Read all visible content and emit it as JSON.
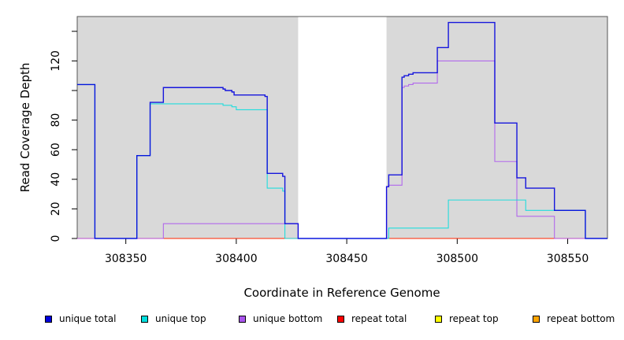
{
  "chart_data": {
    "type": "line",
    "title": "",
    "xlabel": "Coordinate in Reference Genome",
    "ylabel": "Read Coverage Depth",
    "xlim": [
      308328,
      308568
    ],
    "ylim": [
      0,
      150
    ],
    "xticks": [
      308350,
      308400,
      308450,
      308500,
      308550
    ],
    "yticks": [
      0,
      20,
      40,
      60,
      80,
      120
    ],
    "yticks_minor": [
      100,
      140
    ],
    "shaded_regions": [
      [
        308328,
        308428
      ],
      [
        308468,
        308568
      ]
    ],
    "legend_position": "bottom",
    "series": [
      {
        "name": "unique total",
        "color": "#0000dd",
        "x": [
          308328,
          308336,
          308336,
          308355,
          308355,
          308361,
          308361,
          308367,
          308367,
          308394,
          308394,
          308395,
          308395,
          308398,
          308398,
          308399,
          308399,
          308400,
          308400,
          308413,
          308413,
          308414,
          308414,
          308421,
          308421,
          308422,
          308422,
          308428,
          308428,
          308468,
          308468,
          308469,
          308469,
          308475,
          308475,
          308476,
          308476,
          308478,
          308478,
          308480,
          308480,
          308491,
          308491,
          308495,
          308495,
          308496,
          308496,
          308517,
          308517,
          308527,
          308527,
          308531,
          308531,
          308544,
          308544,
          308558,
          308558,
          308568
        ],
        "y": [
          104,
          104,
          0,
          0,
          56,
          56,
          92,
          92,
          102,
          102,
          101,
          101,
          100,
          100,
          99,
          99,
          97,
          97,
          97,
          97,
          96,
          96,
          44,
          44,
          42,
          42,
          10,
          10,
          0,
          0,
          35,
          35,
          43,
          43,
          109,
          109,
          110,
          110,
          111,
          111,
          112,
          112,
          129,
          129,
          129,
          129,
          146,
          146,
          78,
          78,
          41,
          41,
          34,
          34,
          19,
          19,
          0,
          0
        ]
      },
      {
        "name": "unique top",
        "color": "#00dddd",
        "x": [
          308328,
          308336,
          308336,
          308355,
          308355,
          308361,
          308361,
          308394,
          308394,
          308398,
          308398,
          308400,
          308400,
          308413,
          308413,
          308414,
          308414,
          308421,
          308421,
          308422,
          308422,
          308428,
          308428,
          308469,
          308469,
          308496,
          308496,
          308527,
          308527,
          308531,
          308531,
          308544,
          308544,
          308558,
          308558,
          308568
        ],
        "y": [
          104,
          104,
          0,
          0,
          56,
          56,
          91,
          91,
          90,
          90,
          89,
          89,
          87,
          87,
          87,
          87,
          34,
          34,
          32,
          32,
          0,
          0,
          0,
          0,
          7,
          7,
          26,
          26,
          26,
          26,
          19,
          19,
          19,
          19,
          0,
          0
        ]
      },
      {
        "name": "unique bottom",
        "color": "#aa55ee",
        "x": [
          308328,
          308367,
          308367,
          308422,
          308422,
          308428,
          308428,
          308468,
          308468,
          308469,
          308469,
          308475,
          308475,
          308476,
          308476,
          308478,
          308478,
          308480,
          308480,
          308491,
          308491,
          308496,
          308496,
          308517,
          308517,
          308527,
          308527,
          308544,
          308544,
          308568
        ],
        "y": [
          0,
          0,
          10,
          10,
          10,
          10,
          0,
          0,
          35,
          35,
          36,
          36,
          102,
          102,
          103,
          103,
          104,
          104,
          105,
          105,
          120,
          120,
          120,
          120,
          52,
          52,
          15,
          15,
          0,
          0
        ]
      },
      {
        "name": "repeat total",
        "color": "#ff0000",
        "x": [
          308328,
          308568
        ],
        "y": [
          0,
          0
        ]
      },
      {
        "name": "repeat top",
        "color": "#ffff00",
        "x": [
          308328,
          308568
        ],
        "y": [
          0,
          0
        ]
      },
      {
        "name": "repeat bottom",
        "color": "#ffa500",
        "x": [
          308328,
          308568
        ],
        "y": [
          0,
          0
        ]
      }
    ]
  }
}
